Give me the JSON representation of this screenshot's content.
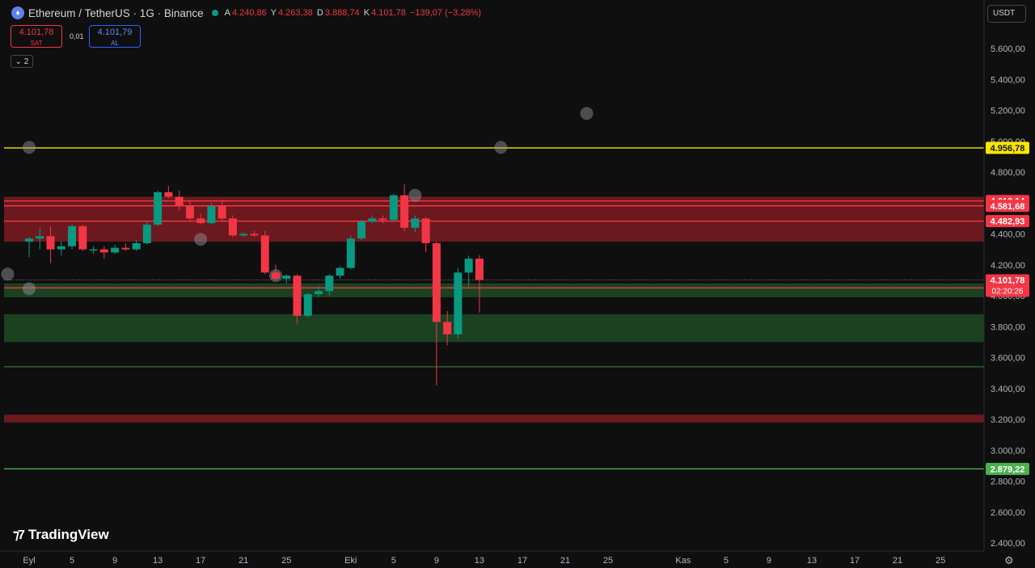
{
  "header": {
    "symbol_title": "Ethereum / TetherUS · 1G · Binance",
    "ohlc": {
      "open_label": "A",
      "open": "4.240,86",
      "high_label": "Y",
      "high": "4.263,38",
      "low_label": "D",
      "low": "3.888,74",
      "close_label": "K",
      "close": "4.101,78",
      "change": "−139,07 (−3,28%)"
    }
  },
  "trade": {
    "sell_price": "4.101,78",
    "sell_label": "SAT",
    "spread": "0,01",
    "buy_price": "4.101,79",
    "buy_label": "AL"
  },
  "indicators_count": "2",
  "currency": "USDT",
  "branding": "TradingView",
  "colors": {
    "up": "#089981",
    "down": "#f23645",
    "resistance_zone": "#8b1d24",
    "support_zone": "#1e4d26",
    "yellow_line": "#f7e600",
    "green_line": "#4caf50"
  },
  "chart_data": {
    "type": "candlestick",
    "timeframe": "1G",
    "ylim": [
      2300,
      5800
    ],
    "y_ticks": [
      2400,
      2600,
      2800,
      3000,
      3200,
      3400,
      3600,
      3800,
      4000,
      4200,
      4400,
      4600,
      4800,
      5000,
      5200,
      5400,
      5600
    ],
    "y_tick_labels": [
      "2.400,00",
      "2.600,00",
      "2.800,00",
      "3.000,00",
      "3.200,00",
      "3.400,00",
      "3.600,00",
      "3.800,00",
      "4.000,00",
      "4.200,00",
      "4.400,00",
      "4.600,00",
      "4.800,00",
      "5.000,00",
      "5.200,00",
      "5.400,00",
      "5.600,00"
    ],
    "x_tick_labels": [
      {
        "day": 0,
        "label": "Eyl"
      },
      {
        "day": 4,
        "label": "5"
      },
      {
        "day": 8,
        "label": "9"
      },
      {
        "day": 12,
        "label": "13"
      },
      {
        "day": 16,
        "label": "17"
      },
      {
        "day": 20,
        "label": "21"
      },
      {
        "day": 24,
        "label": "25"
      },
      {
        "day": 30,
        "label": "Eki"
      },
      {
        "day": 34,
        "label": "5"
      },
      {
        "day": 38,
        "label": "9"
      },
      {
        "day": 42,
        "label": "13"
      },
      {
        "day": 46,
        "label": "17"
      },
      {
        "day": 50,
        "label": "21"
      },
      {
        "day": 54,
        "label": "25"
      },
      {
        "day": 61,
        "label": "Kas"
      },
      {
        "day": 65,
        "label": "5"
      },
      {
        "day": 69,
        "label": "9"
      },
      {
        "day": 73,
        "label": "13"
      },
      {
        "day": 77,
        "label": "17"
      },
      {
        "day": 81,
        "label": "21"
      },
      {
        "day": 85,
        "label": "25"
      }
    ],
    "candles": [
      [
        4350,
        4380,
        4250,
        4370
      ],
      [
        4370,
        4440,
        4300,
        4385
      ],
      [
        4385,
        4450,
        4210,
        4300
      ],
      [
        4300,
        4350,
        4260,
        4320
      ],
      [
        4320,
        4460,
        4300,
        4450
      ],
      [
        4450,
        4460,
        4290,
        4300
      ],
      [
        4300,
        4320,
        4270,
        4300
      ],
      [
        4300,
        4320,
        4240,
        4280
      ],
      [
        4280,
        4330,
        4270,
        4310
      ],
      [
        4310,
        4340,
        4290,
        4300
      ],
      [
        4300,
        4360,
        4290,
        4340
      ],
      [
        4340,
        4480,
        4330,
        4460
      ],
      [
        4460,
        4680,
        4450,
        4670
      ],
      [
        4670,
        4710,
        4630,
        4640
      ],
      [
        4640,
        4680,
        4550,
        4580
      ],
      [
        4580,
        4620,
        4480,
        4500
      ],
      [
        4500,
        4530,
        4460,
        4470
      ],
      [
        4470,
        4600,
        4460,
        4580
      ],
      [
        4580,
        4620,
        4480,
        4500
      ],
      [
        4500,
        4520,
        4380,
        4390
      ],
      [
        4390,
        4410,
        4380,
        4400
      ],
      [
        4400,
        4420,
        4380,
        4390
      ],
      [
        4390,
        4420,
        4140,
        4150
      ],
      [
        4150,
        4200,
        4100,
        4110
      ],
      [
        4110,
        4140,
        4080,
        4130
      ],
      [
        4130,
        4140,
        3820,
        3870
      ],
      [
        3870,
        4020,
        3860,
        4010
      ],
      [
        4010,
        4060,
        3990,
        4030
      ],
      [
        4030,
        4140,
        4000,
        4130
      ],
      [
        4130,
        4190,
        4110,
        4180
      ],
      [
        4180,
        4390,
        4170,
        4370
      ],
      [
        4370,
        4490,
        4360,
        4480
      ],
      [
        4480,
        4520,
        4470,
        4500
      ],
      [
        4500,
        4520,
        4470,
        4490
      ],
      [
        4490,
        4660,
        4480,
        4650
      ],
      [
        4650,
        4720,
        4420,
        4440
      ],
      [
        4440,
        4520,
        4410,
        4500
      ],
      [
        4500,
        4510,
        4280,
        4340
      ],
      [
        4340,
        4350,
        3420,
        3830
      ],
      [
        3830,
        3900,
        3680,
        3750
      ],
      [
        3750,
        4180,
        3720,
        4150
      ],
      [
        4150,
        4260,
        4060,
        4240
      ],
      [
        4240,
        4263,
        3889,
        4102
      ]
    ],
    "horizontal_lines": [
      {
        "price": 4956.78,
        "label": "4.956,78",
        "color": "#f7e600"
      },
      {
        "price": 4613.14,
        "label": "4.613,14",
        "color": "#f23645"
      },
      {
        "price": 4581.68,
        "label": "4.581,68",
        "color": "#f23645"
      },
      {
        "price": 4482.93,
        "label": "4.482,93",
        "color": "#f23645"
      },
      {
        "price": 4050.79,
        "label": "4.050,79",
        "color": "#f23645"
      },
      {
        "price": 2879.22,
        "label": "2.879,22",
        "color": "#4caf50"
      },
      {
        "price": 3540,
        "label": "",
        "color": "#2e6b35"
      }
    ],
    "zones": [
      {
        "from": 4350,
        "to": 4640,
        "type": "resistance"
      },
      {
        "from": 3990,
        "to": 4080,
        "type": "support"
      },
      {
        "from": 3700,
        "to": 3880,
        "type": "support"
      },
      {
        "from": 3180,
        "to": 3230,
        "type": "resistance"
      }
    ],
    "current_price": {
      "price": 4101.78,
      "label": "4.101,78",
      "countdown": "02:20:26"
    },
    "markers": [
      {
        "day": 0,
        "price": 4960
      },
      {
        "day": 44,
        "price": 4960
      },
      {
        "day": 52,
        "price": 5180
      },
      {
        "day": 16,
        "price": 4365
      },
      {
        "day": 23,
        "price": 4130
      },
      {
        "day": 0,
        "price": 4045
      },
      {
        "day": 36,
        "price": 4650
      },
      {
        "day": -2,
        "price": 4140
      }
    ]
  }
}
